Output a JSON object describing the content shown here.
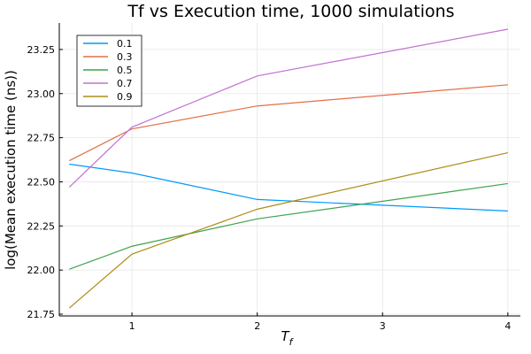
{
  "chart_data": {
    "type": "line",
    "title": "Tf vs Execution time, 1000 simulations",
    "xlabel": "T",
    "xlabel_sub": "f",
    "ylabel": "log(Mean execution time (ns))",
    "x": [
      0.5,
      1,
      2,
      4
    ],
    "xlim": [
      0.42,
      4.1
    ],
    "ylim": [
      21.74,
      23.4
    ],
    "xticks": [
      1,
      2,
      3,
      4
    ],
    "xtick_labels": [
      "1",
      "2",
      "3",
      "4"
    ],
    "yticks": [
      21.75,
      22.0,
      22.25,
      22.5,
      22.75,
      23.0,
      23.25
    ],
    "ytick_labels": [
      "21.75",
      "22.00",
      "22.25",
      "22.50",
      "22.75",
      "23.00",
      "23.25"
    ],
    "grid": true,
    "legend_position": "top-left",
    "series": [
      {
        "name": "0.1",
        "color": "#009af9",
        "values": [
          22.6,
          22.55,
          22.4,
          22.335
        ]
      },
      {
        "name": "0.3",
        "color": "#e26f46",
        "values": [
          22.62,
          22.8,
          22.93,
          23.05
        ]
      },
      {
        "name": "0.5",
        "color": "#3da44d",
        "values": [
          22.005,
          22.135,
          22.29,
          22.49
        ]
      },
      {
        "name": "0.7",
        "color": "#c271d2",
        "values": [
          22.47,
          22.81,
          23.1,
          23.365
        ]
      },
      {
        "name": "0.9",
        "color": "#ac8d18",
        "values": [
          21.785,
          22.09,
          22.345,
          22.665
        ]
      }
    ]
  }
}
